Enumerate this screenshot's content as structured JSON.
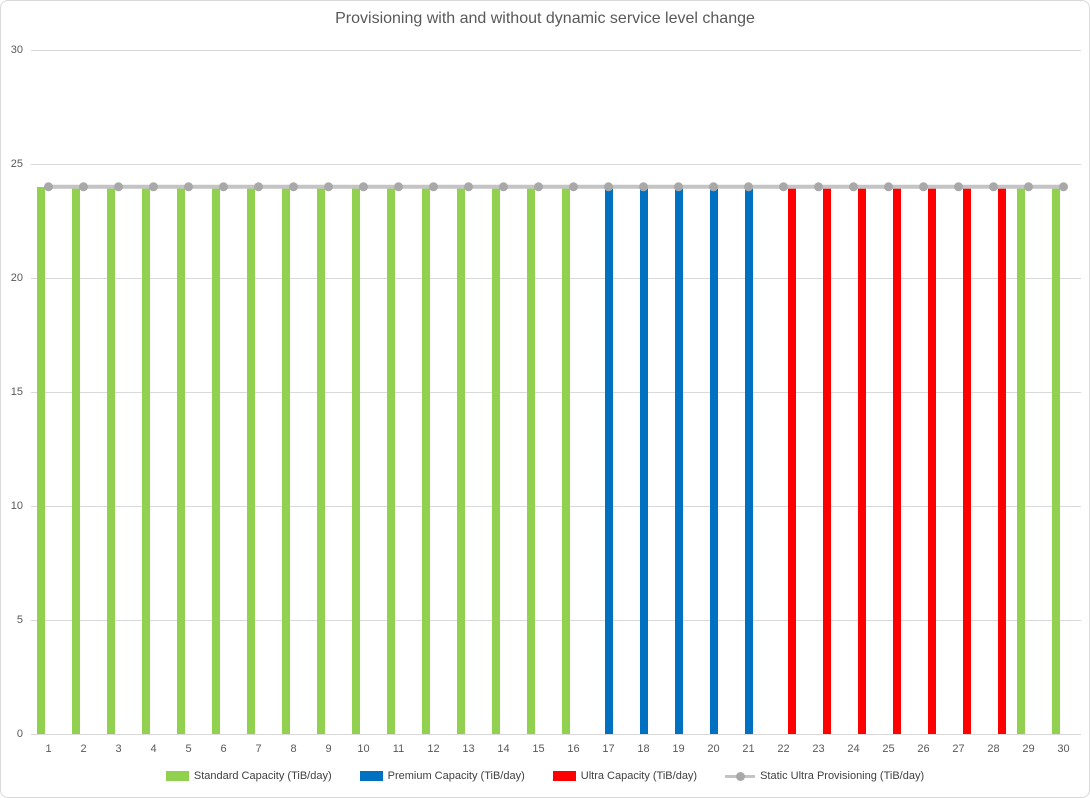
{
  "chart_data": {
    "type": "bar",
    "title": "Provisioning with and without dynamic service level change",
    "categories": [
      "1",
      "2",
      "3",
      "4",
      "5",
      "6",
      "7",
      "8",
      "9",
      "10",
      "11",
      "12",
      "13",
      "14",
      "15",
      "16",
      "17",
      "18",
      "19",
      "20",
      "21",
      "22",
      "23",
      "24",
      "25",
      "26",
      "27",
      "28",
      "29",
      "30"
    ],
    "series": [
      {
        "name": "Standard Capacity (TiB/day)",
        "type": "bar",
        "color": "#92d050",
        "values": [
          24,
          24,
          24,
          24,
          24,
          24,
          24,
          24,
          24,
          24,
          24,
          24,
          24,
          24,
          24,
          24,
          null,
          null,
          null,
          null,
          null,
          null,
          null,
          null,
          null,
          null,
          null,
          null,
          24,
          24
        ]
      },
      {
        "name": "Premium Capacity (TiB/day)",
        "type": "bar",
        "color": "#0070c0",
        "values": [
          null,
          null,
          null,
          null,
          null,
          null,
          null,
          null,
          null,
          null,
          null,
          null,
          null,
          null,
          null,
          null,
          24,
          24,
          24,
          24,
          24,
          null,
          null,
          null,
          null,
          null,
          null,
          null,
          null,
          null
        ]
      },
      {
        "name": "Ultra Capacity (TiB/day)",
        "type": "bar",
        "color": "#ff0000",
        "values": [
          null,
          null,
          null,
          null,
          null,
          null,
          null,
          null,
          null,
          null,
          null,
          null,
          null,
          null,
          null,
          null,
          null,
          null,
          null,
          null,
          null,
          24,
          24,
          24,
          24,
          24,
          24,
          24,
          null,
          null
        ]
      },
      {
        "name": "Static Ultra Provisioning (TiB/day)",
        "type": "line",
        "color": "#c4c4c4",
        "marker_color": "#a8a8a8",
        "values": [
          24,
          24,
          24,
          24,
          24,
          24,
          24,
          24,
          24,
          24,
          24,
          24,
          24,
          24,
          24,
          24,
          24,
          24,
          24,
          24,
          24,
          24,
          24,
          24,
          24,
          24,
          24,
          24,
          24,
          24
        ]
      }
    ],
    "ylim": [
      0,
      30
    ],
    "yticks": [
      0,
      5,
      10,
      15,
      20,
      25,
      30
    ],
    "xlabel": "",
    "ylabel": "",
    "grid": true,
    "legend_position": "bottom"
  },
  "style": {
    "gridline_color": "#d9d9d9",
    "axis_label_color": "#595959",
    "title_color": "#595959",
    "legend_text_color": "#404040",
    "border_color": "#d9d9d9",
    "background": "#ffffff"
  }
}
